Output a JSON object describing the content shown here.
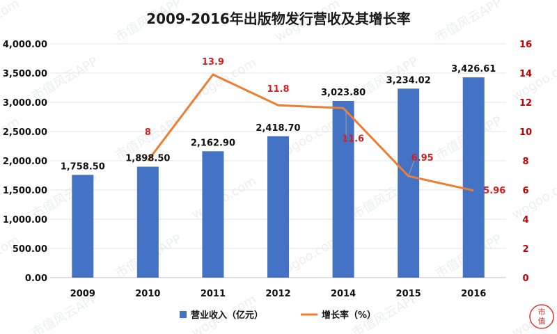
{
  "chart_data": {
    "type": "bar",
    "title": "2009-2016年出版物发行营收及其增长率",
    "categories": [
      "2009",
      "2010",
      "2011",
      "2012",
      "2014",
      "2015",
      "2016"
    ],
    "series": [
      {
        "name": "营业收入（亿元）",
        "type": "bar",
        "axis": "left",
        "color": "#4472c4",
        "values": [
          1758.5,
          1898.5,
          2162.9,
          2418.7,
          3023.8,
          3234.02,
          3426.61
        ],
        "labels": [
          "1,758.50",
          "1,898.50",
          "2,162.90",
          "2,418.70",
          "3,023.80",
          "3,234.02",
          "3,426.61"
        ]
      },
      {
        "name": "增长率（%）",
        "type": "line",
        "axis": "right",
        "color": "#ed7d31",
        "values": [
          null,
          8,
          13.9,
          11.8,
          11.6,
          6.95,
          5.96
        ],
        "labels": [
          "",
          "8",
          "13.9",
          "11.8",
          "11.6",
          "6.95",
          "5.96"
        ]
      }
    ],
    "y_left": {
      "min": 0,
      "max": 4000,
      "ticks": [
        "0.00",
        "500.00",
        "1,000.00",
        "1,500.00",
        "2,000.00",
        "2,500.00",
        "3,000.00",
        "3,500.00",
        "4,000.00"
      ]
    },
    "y_right": {
      "min": 0,
      "max": 16,
      "ticks": [
        "0",
        "2",
        "4",
        "6",
        "8",
        "10",
        "12",
        "14",
        "16"
      ],
      "color": "#c00000"
    },
    "legend_position": "bottom",
    "grid": true,
    "watermark": [
      "wogoo.com",
      "市值风云APP"
    ]
  }
}
